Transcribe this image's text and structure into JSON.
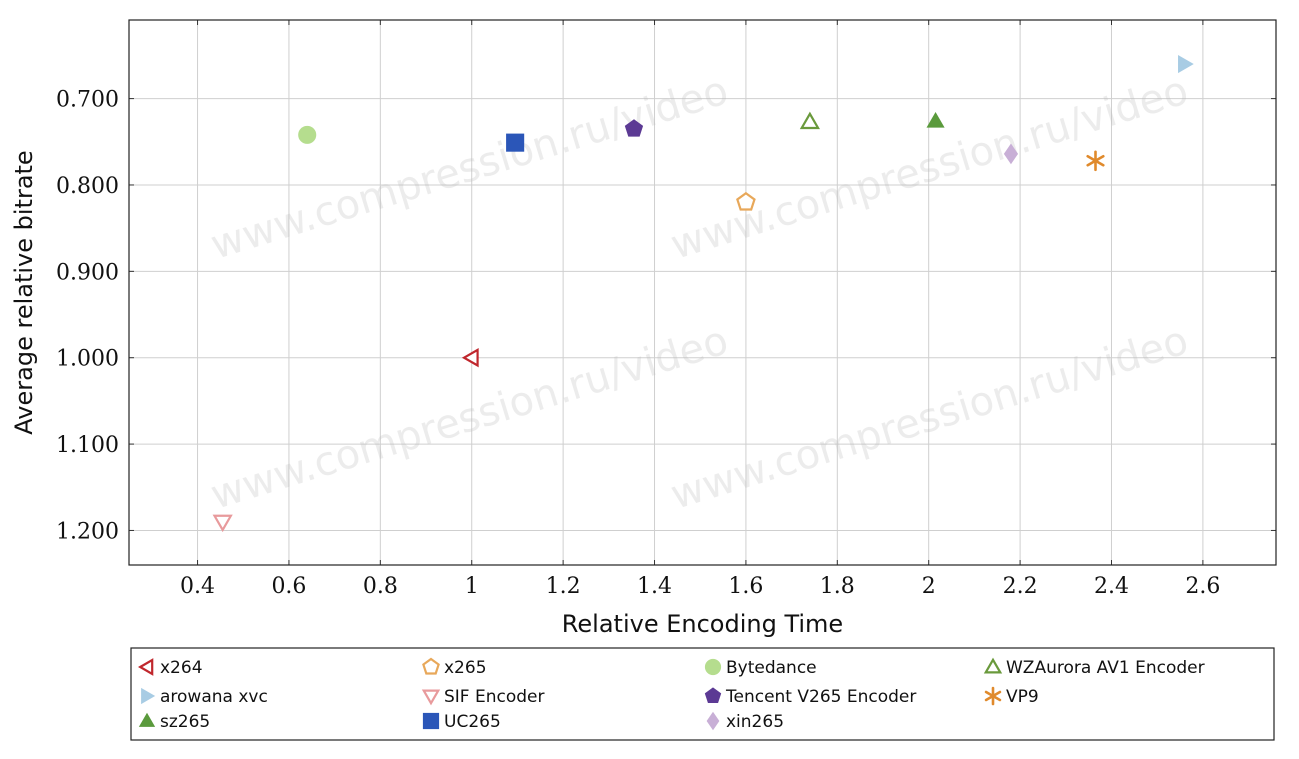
{
  "chart_data": {
    "type": "scatter",
    "title": "",
    "xlabel": "Relative Encoding Time",
    "ylabel": "Average relative bitrate",
    "xlim": [
      0.25,
      2.76
    ],
    "ylim": [
      0.609,
      1.24
    ],
    "y_inverted": true,
    "grid": true,
    "x_ticks": [
      0.4,
      0.6,
      0.8,
      1.0,
      1.2,
      1.4,
      1.6,
      1.8,
      2.0,
      2.2,
      2.4,
      2.6
    ],
    "x_tick_labels": [
      "0.4",
      "0.6",
      "0.8",
      "1",
      "1.2",
      "1.4",
      "1.6",
      "1.8",
      "2",
      "2.2",
      "2.4",
      "2.6"
    ],
    "y_ticks": [
      0.7,
      0.8,
      0.9,
      1.0,
      1.1,
      1.2
    ],
    "y_tick_labels": [
      "0.700",
      "0.800",
      "0.900",
      "1.000",
      "1.100",
      "1.200"
    ],
    "legend_position": "below",
    "watermark": "www.compression.ru/video",
    "series": [
      {
        "name": "x264",
        "x": [
          1.0
        ],
        "y": [
          1.0
        ],
        "color": "#c0272d",
        "marker": "triangle-left-open"
      },
      {
        "name": "x265",
        "x": [
          1.6
        ],
        "y": [
          0.82
        ],
        "color": "#e8a85a",
        "marker": "pentagon-open"
      },
      {
        "name": "Bytedance",
        "x": [
          0.64
        ],
        "y": [
          0.742
        ],
        "color": "#b5dd8e",
        "marker": "circle"
      },
      {
        "name": "WZAurora AV1 Encoder",
        "x": [
          1.74
        ],
        "y": [
          0.727
        ],
        "color": "#6a9a3c",
        "marker": "triangle-up-open"
      },
      {
        "name": "arowana xvc",
        "x": [
          2.56
        ],
        "y": [
          0.66
        ],
        "color": "#a8cce4",
        "marker": "triangle-right"
      },
      {
        "name": "SIF Encoder",
        "x": [
          0.455
        ],
        "y": [
          1.19
        ],
        "color": "#e89a9c",
        "marker": "triangle-down-open"
      },
      {
        "name": "Tencent V265 Encoder",
        "x": [
          1.355
        ],
        "y": [
          0.735
        ],
        "color": "#5c3a94",
        "marker": "pentagon"
      },
      {
        "name": "VP9",
        "x": [
          2.365
        ],
        "y": [
          0.772
        ],
        "color": "#e08a2c",
        "marker": "asterisk"
      },
      {
        "name": "sz265",
        "x": [
          2.015
        ],
        "y": [
          0.726
        ],
        "color": "#5a9a3c",
        "marker": "triangle-up"
      },
      {
        "name": "UC265",
        "x": [
          1.095
        ],
        "y": [
          0.751
        ],
        "color": "#2b56b8",
        "marker": "square"
      },
      {
        "name": "xin265",
        "x": [
          2.18
        ],
        "y": [
          0.764
        ],
        "color": "#c8afd6",
        "marker": "diamond"
      }
    ]
  }
}
